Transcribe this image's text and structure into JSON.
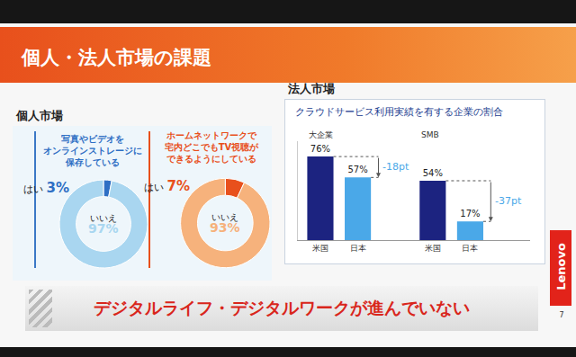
{
  "header": {
    "title": "個人・法人市場の課題"
  },
  "sections": {
    "personal": "個人市場",
    "corporate": "法人市場"
  },
  "banner": "デジタルライフ・デジタルワークが進んでいない",
  "brand": "Lenovo",
  "page": "7",
  "chart_data": [
    {
      "type": "donut",
      "title": "写真やビデオを\nオンラインストレージに\n保存している",
      "categories": [
        "はい",
        "いいえ"
      ],
      "values": [
        3,
        97
      ],
      "value_labels": [
        "3%",
        "97%"
      ],
      "colors": [
        "#2f6fc4",
        "#a9d6f0"
      ],
      "data_labels": true
    },
    {
      "type": "donut",
      "title": "ホームネットワークで\n宅内どこでもTV視聴が\nできるようにしている",
      "categories": [
        "はい",
        "いいえ"
      ],
      "values": [
        7,
        93
      ],
      "value_labels": [
        "7%",
        "93%"
      ],
      "colors": [
        "#e8501c",
        "#f6b27c"
      ],
      "data_labels": true
    },
    {
      "type": "bar",
      "title": "クラウドサービス利用実績を有する企業の割合",
      "groups": [
        {
          "name": "大企業",
          "categories": [
            "米国",
            "日本"
          ],
          "values": [
            76,
            57
          ],
          "value_labels": [
            "76%",
            "57%"
          ],
          "colors": [
            "#1c2380",
            "#4aa8e8"
          ],
          "annotation": "-18pt"
        },
        {
          "name": "SMB",
          "categories": [
            "米国",
            "日本"
          ],
          "values": [
            54,
            17
          ],
          "value_labels": [
            "54%",
            "17%"
          ],
          "colors": [
            "#1c2380",
            "#4aa8e8"
          ],
          "annotation": "-37pt"
        }
      ],
      "ylim": [
        0,
        90
      ],
      "yticks": [],
      "tick_labels": "x",
      "data_labels": true,
      "grid": false
    }
  ]
}
